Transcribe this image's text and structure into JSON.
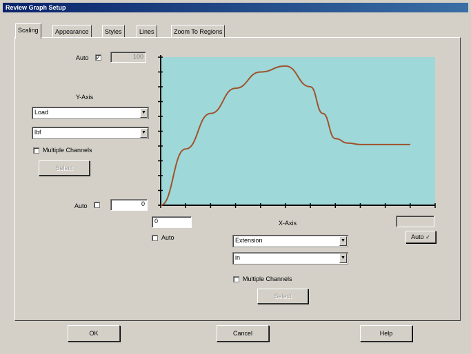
{
  "window": {
    "title": "Review Graph Setup"
  },
  "tabs": [
    {
      "label": "Scaling"
    },
    {
      "label": "Appearance"
    },
    {
      "label": "Styles"
    },
    {
      "label": "Lines"
    },
    {
      "label": "Zoom To Regions"
    }
  ],
  "top_auto": {
    "label": "Auto",
    "checked": true,
    "value": "100"
  },
  "y_axis": {
    "title": "Y-Axis",
    "channel": "Load",
    "units": "lbf",
    "multiple_label": "Multiple Channels",
    "select_label": "Select"
  },
  "y_min_auto": {
    "label": "Auto",
    "checked": false,
    "value": "0"
  },
  "x_axis": {
    "title": "X-Axis",
    "channel": "Extension",
    "units": "in",
    "multiple_label": "Multiple Channels",
    "select_label": "Select"
  },
  "x_min": {
    "value": "0",
    "auto_label": "Auto",
    "auto_checked": false
  },
  "x_max": {
    "value": "",
    "auto_label": "Auto",
    "auto_checked": true
  },
  "buttons": {
    "ok": "OK",
    "cancel": "Cancel",
    "help": "Help"
  },
  "colors": {
    "plot_bg": "#9ed8d8",
    "curve": "#a0522d",
    "titlebar": "#0a246a"
  },
  "chart_data": {
    "type": "line",
    "x": [
      0,
      0.1,
      0.2,
      0.3,
      0.4,
      0.5,
      0.6,
      0.65,
      0.7,
      0.75,
      0.8,
      0.85,
      0.9,
      1.0
    ],
    "y": [
      0,
      38,
      62,
      79,
      90,
      94,
      80,
      62,
      45,
      42,
      41,
      41,
      41,
      41
    ],
    "xlim": [
      0,
      1.1
    ],
    "ylim": [
      0,
      100
    ],
    "grid": false
  }
}
